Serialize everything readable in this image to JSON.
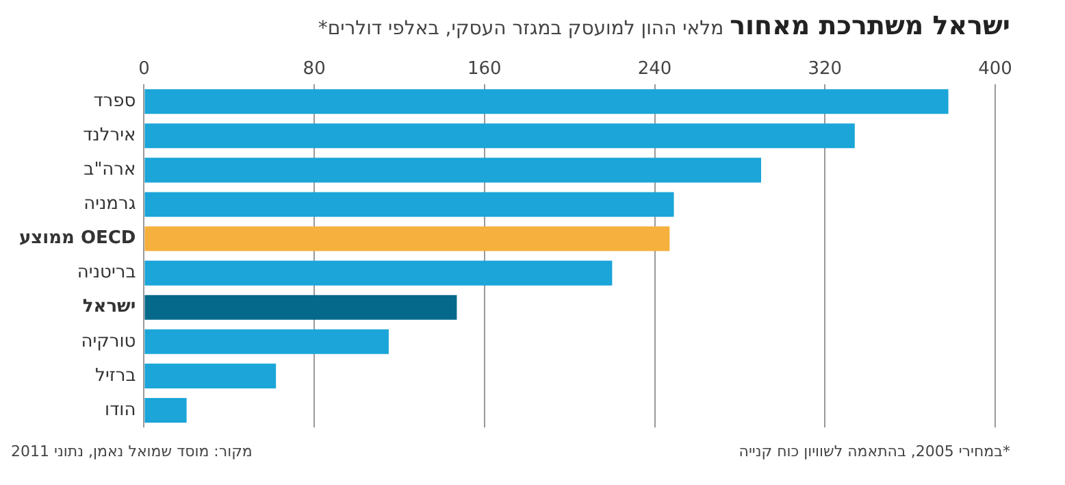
{
  "chart_data": {
    "type": "bar",
    "orientation": "horizontal",
    "title": "ישראל משתרכת מאחור",
    "subtitle": "מלאי ההון למועסק במגזר העסקי, באלפי דולרים*",
    "categories": [
      "ספרד",
      "אירלנד",
      "ארה\"ב",
      "גרמניה",
      "ממוצע OECD",
      "בריטניה",
      "ישראל",
      "טורקיה",
      "ברזיל",
      "הודו"
    ],
    "values": [
      378,
      334,
      290,
      249,
      247,
      220,
      147,
      115,
      62,
      20
    ],
    "colors": [
      "#1ba5d8",
      "#1ba5d8",
      "#1ba5d8",
      "#1ba5d8",
      "#f6b03e",
      "#1ba5d8",
      "#05698c",
      "#1ba5d8",
      "#1ba5d8",
      "#1ba5d8"
    ],
    "xlim": [
      0,
      400
    ],
    "xticks": [
      0,
      80,
      160,
      240,
      320,
      400
    ],
    "grid": "x",
    "annotations": [
      "*במחירי 2005, בהתאמה לשוויון כוח קנייה",
      "מקור: מוסד שמואל נאמן, נתוני 2011"
    ]
  }
}
